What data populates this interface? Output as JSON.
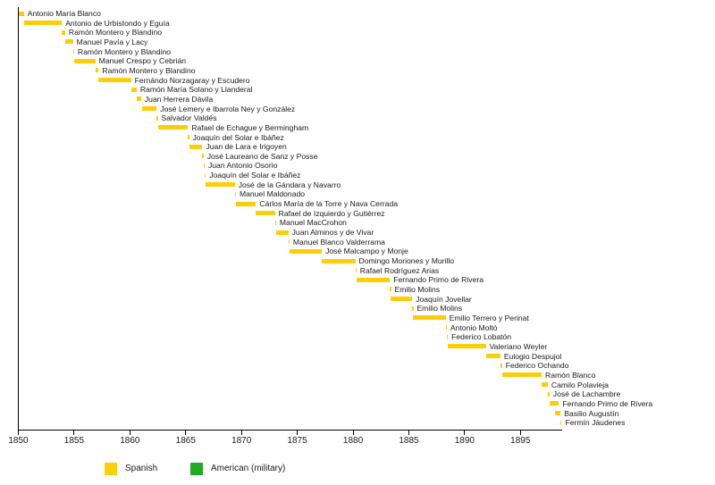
{
  "colors": {
    "bar_spanish": "#FBCE07",
    "legend_american": "#22AA22",
    "axis": "#000000",
    "text": "#1a1a1a",
    "background": "#ffffff"
  },
  "chart_data": {
    "type": "bar",
    "variant": "horizontal-gantt-timeline",
    "title": "",
    "xlabel": "",
    "ylabel": "",
    "axis": {
      "min": 1850,
      "max": 1898.7,
      "ticks": [
        1850,
        1855,
        1860,
        1865,
        1870,
        1875,
        1880,
        1885,
        1890,
        1895
      ],
      "grid": false
    },
    "legend": {
      "position": "bottom",
      "items": [
        {
          "label": "Spanish",
          "color": "#FBCE07"
        },
        {
          "label": "American (military)",
          "color": "#22AA22"
        }
      ]
    },
    "bars": [
      {
        "name": "Antonio María Blanco",
        "start": 1850.0,
        "end": 1850.5,
        "group": "Spanish"
      },
      {
        "name": "Antonio de Urbistondo y Eguía",
        "start": 1850.5,
        "end": 1853.9,
        "group": "Spanish"
      },
      {
        "name": "Ramón Montero y Blandino",
        "start": 1853.9,
        "end": 1854.2,
        "group": "Spanish"
      },
      {
        "name": "Manuel Pavía y Lacy",
        "start": 1854.2,
        "end": 1854.9,
        "group": "Spanish"
      },
      {
        "name": "Ramón Montero y Blandino",
        "start": 1854.9,
        "end": 1855.0,
        "group": "Spanish"
      },
      {
        "name": "Manuel Crespo y Cebrián",
        "start": 1855.0,
        "end": 1856.9,
        "group": "Spanish"
      },
      {
        "name": "Ramón Montero y Blandino",
        "start": 1856.9,
        "end": 1857.2,
        "group": "Spanish"
      },
      {
        "name": "Fernándo Norzagaray y Escudero",
        "start": 1857.2,
        "end": 1860.1,
        "group": "Spanish"
      },
      {
        "name": "Ramón María Solano y Llanderal",
        "start": 1860.1,
        "end": 1860.6,
        "group": "Spanish"
      },
      {
        "name": "Juan Herrera Dávila",
        "start": 1860.6,
        "end": 1861.0,
        "group": "Spanish"
      },
      {
        "name": "José Lemery e Ibarrola Ney y González",
        "start": 1861.1,
        "end": 1862.4,
        "group": "Spanish"
      },
      {
        "name": "Salvador Valdés",
        "start": 1862.4,
        "end": 1862.5,
        "group": "Spanish"
      },
      {
        "name": "Rafael de Echague y Bermingham",
        "start": 1862.5,
        "end": 1865.2,
        "group": "Spanish"
      },
      {
        "name": "Joaquín del Solar e Ibáñez",
        "start": 1865.2,
        "end": 1865.3,
        "group": "Spanish"
      },
      {
        "name": "Juan de Lara e Irigoyen",
        "start": 1865.3,
        "end": 1866.5,
        "group": "Spanish"
      },
      {
        "name": "José Laureano de Sanz y Posse",
        "start": 1866.5,
        "end": 1866.6,
        "group": "Spanish"
      },
      {
        "name": "Juan Antonio Osorio",
        "start": 1866.6,
        "end": 1866.7,
        "group": "Spanish"
      },
      {
        "name": "Joaquín del Solar e Ibáñez",
        "start": 1866.7,
        "end": 1866.8,
        "group": "Spanish"
      },
      {
        "name": "José de la Gándara y Navarro",
        "start": 1866.8,
        "end": 1869.4,
        "group": "Spanish"
      },
      {
        "name": "Manuel Maldonado",
        "start": 1869.4,
        "end": 1869.5,
        "group": "Spanish"
      },
      {
        "name": "Cárlos María de la Torre y Nava Cerrada",
        "start": 1869.5,
        "end": 1871.3,
        "group": "Spanish"
      },
      {
        "name": "Rafael de Izquierdo y Gutiérrez",
        "start": 1871.3,
        "end": 1873.0,
        "group": "Spanish"
      },
      {
        "name": "Manuel MacCrohon",
        "start": 1873.0,
        "end": 1873.1,
        "group": "Spanish"
      },
      {
        "name": "Juan Alminos y de Vivar",
        "start": 1873.1,
        "end": 1874.2,
        "group": "Spanish"
      },
      {
        "name": "Manuel Blanco Valderrama",
        "start": 1874.2,
        "end": 1874.3,
        "group": "Spanish"
      },
      {
        "name": "José Malcampo y Monje",
        "start": 1874.3,
        "end": 1877.2,
        "group": "Spanish"
      },
      {
        "name": "Domingo Moriones y Murillo",
        "start": 1877.2,
        "end": 1880.2,
        "group": "Spanish"
      },
      {
        "name": "Rafael Rodríguez Arias",
        "start": 1880.2,
        "end": 1880.3,
        "group": "Spanish"
      },
      {
        "name": "Fernando Primo de Rivera",
        "start": 1880.3,
        "end": 1883.3,
        "group": "Spanish"
      },
      {
        "name": "Emilio Molins",
        "start": 1883.3,
        "end": 1883.4,
        "group": "Spanish"
      },
      {
        "name": "Joaquín Jovellar",
        "start": 1883.4,
        "end": 1885.3,
        "group": "Spanish"
      },
      {
        "name": "Emilio Molins",
        "start": 1885.3,
        "end": 1885.4,
        "group": "Spanish"
      },
      {
        "name": "Emilio Terrero y Perinat",
        "start": 1885.4,
        "end": 1888.3,
        "group": "Spanish"
      },
      {
        "name": "Antonio Moltó",
        "start": 1888.3,
        "end": 1888.4,
        "group": "Spanish"
      },
      {
        "name": "Federico Lobatón",
        "start": 1888.4,
        "end": 1888.5,
        "group": "Spanish"
      },
      {
        "name": "Valeriano Weyler",
        "start": 1888.5,
        "end": 1891.9,
        "group": "Spanish"
      },
      {
        "name": "Eulogio Despujol",
        "start": 1891.9,
        "end": 1893.2,
        "group": "Spanish"
      },
      {
        "name": "Federico Ochando",
        "start": 1893.2,
        "end": 1893.35,
        "group": "Spanish"
      },
      {
        "name": "Ramón Blanco",
        "start": 1893.4,
        "end": 1896.9,
        "group": "Spanish"
      },
      {
        "name": "Camilo Polavieja",
        "start": 1896.9,
        "end": 1897.45,
        "group": "Spanish"
      },
      {
        "name": "José de Lachambre",
        "start": 1897.45,
        "end": 1897.6,
        "group": "Spanish"
      },
      {
        "name": "Fernando Primo de Rivera",
        "start": 1897.6,
        "end": 1898.45,
        "group": "Spanish"
      },
      {
        "name": "Basilio Augustín",
        "start": 1898.1,
        "end": 1898.6,
        "group": "Spanish"
      },
      {
        "name": "Fermín Jáudenes",
        "start": 1898.55,
        "end": 1898.7,
        "group": "Spanish"
      }
    ]
  }
}
